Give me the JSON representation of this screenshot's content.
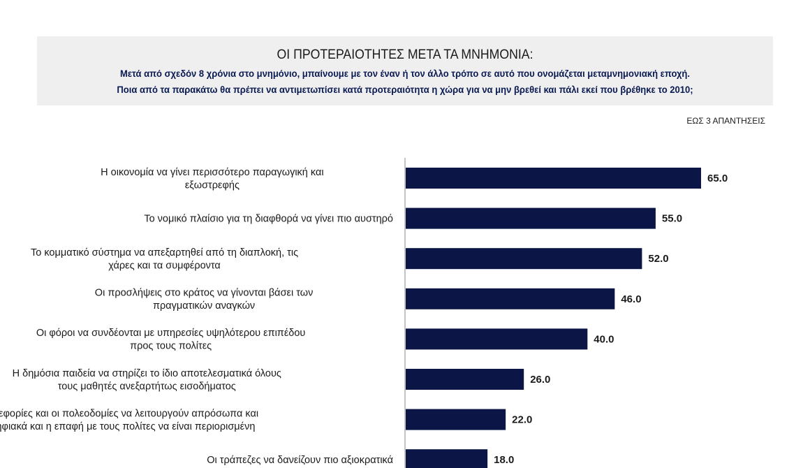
{
  "header": {
    "title": "ΟΙ ΠΡΟΤΕΡΑΙΟΤΗΤΕΣ ΜΕΤΑ ΤΑ ΜΝΗΜΟΝΙΑ:",
    "subtitle_line1": "Μετά από σχεδόν 8 χρόνια στο μνημόνιο, μπαίνουμε με τον έναν ή τον άλλο τρόπο σε αυτό που ονομάζεται μεταμνημονιακή εποχή.",
    "subtitle_line2": "Ποια από τα παρακάτω θα πρέπει να αντιμετωπίσει κατά προτεραιότητα η χώρα για να μην βρεθεί και πάλι εκεί που βρέθηκε το 2010;"
  },
  "note": "ΕΩΣ 3 ΑΠΑΝΤΗΣΕΙΣ",
  "chart_data": {
    "type": "bar",
    "orientation": "horizontal",
    "title": "ΟΙ ΠΡΟΤΕΡΑΙΟΤΗΤΕΣ ΜΕΤΑ ΤΑ ΜΝΗΜΟΝΙΑ:",
    "categories": [
      [
        "Η οικονομία να γίνει περισσότερο παραγωγική και",
        "εξωστρεφής"
      ],
      [
        "Το νομικό πλαίσιο για τη διαφθορά να γίνει πιο αυστηρό"
      ],
      [
        "Το κομματικό σύστημα να απεξαρτηθεί από τη διαπλοκή, τις",
        "χάρες και τα συμφέροντα"
      ],
      [
        "Οι προσλήψεις στο κράτος να γίνονται βάσει των",
        "πραγματικών αναγκών"
      ],
      [
        "Οι φόροι να συνδέονται με υπηρεσίες υψηλότερου επιπέδου",
        "προς τους πολίτες"
      ],
      [
        "Η δημόσια παιδεία να στηρίζει το ίδιο αποτελεσματικά όλους",
        "τους μαθητές ανεξαρτήτως εισοδήματος"
      ],
      [
        "Οι εφορίες και οι πολεοδομίες να λειτουργούν απρόσωπα και",
        "ψηφιακά και η επαφή με τους πολίτες να είναι περιορισμένη"
      ],
      [
        "Οι τράπεζες να δανείζουν πιο αξιοκρατικά"
      ]
    ],
    "values": [
      65.0,
      55.0,
      52.0,
      46.0,
      40.0,
      26.0,
      22.0,
      18.0
    ],
    "value_labels": [
      "65.0",
      "55.0",
      "52.0",
      "46.0",
      "40.0",
      "26.0",
      "22.0",
      "18.0"
    ],
    "bar_color": "#0b1647",
    "xlim": [
      0,
      80
    ],
    "grid": false
  }
}
